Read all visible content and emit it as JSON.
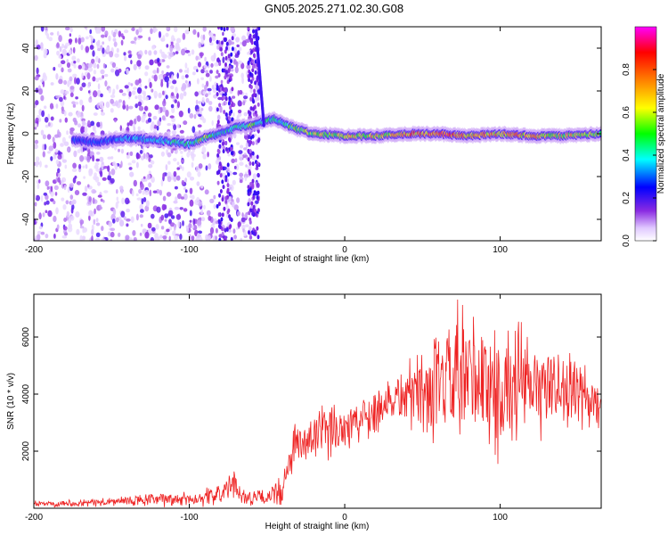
{
  "figure": {
    "title": "GN05.2025.271.02.30.G08"
  },
  "chart_data": [
    {
      "type": "heatmap",
      "xlabel": "Height of straight line (km)",
      "ylabel": "Frequency (Hz)",
      "xlim": [
        -200,
        165
      ],
      "ylim": [
        -50,
        50
      ],
      "xticks": [
        -200,
        -100,
        0,
        100
      ],
      "yticks": [
        -40,
        -20,
        0,
        20,
        40
      ],
      "colorbar": {
        "label": "Normalized spectral amplitude",
        "range": [
          0,
          1
        ],
        "ticks": [
          "0.0",
          "0.2",
          "0.4",
          "0.6",
          "0.8"
        ],
        "tick_values": [
          0.0,
          0.2,
          0.4,
          0.6,
          0.8
        ],
        "colors": [
          "#ffffff",
          "#e0c8ff",
          "#8a2be2",
          "#0000ff",
          "#00ffff",
          "#00ff00",
          "#ffff00",
          "#ff8000",
          "#ff0000",
          "#ff00ff"
        ]
      },
      "ridge": {
        "x": [
          -175,
          -160,
          -140,
          -120,
          -100,
          -90,
          -80,
          -70,
          -60,
          -50,
          -45,
          -40,
          -30,
          -20,
          0,
          20,
          40,
          60,
          80,
          100,
          120,
          140,
          165
        ],
        "freq": [
          -3,
          -4,
          -2,
          -3,
          -5,
          -2,
          0,
          3,
          4,
          6,
          7,
          5,
          2,
          0,
          -1,
          -1,
          0,
          0,
          -1,
          0,
          -1,
          -1,
          0
        ],
        "amp": [
          0.25,
          0.3,
          0.35,
          0.4,
          0.45,
          0.55,
          0.4,
          0.45,
          0.5,
          0.45,
          0.4,
          0.45,
          0.55,
          0.6,
          0.65,
          0.65,
          0.75,
          0.85,
          0.7,
          0.75,
          0.7,
          0.65,
          0.6
        ]
      },
      "noise_region_x": [
        -200,
        -55
      ]
    },
    {
      "type": "line",
      "xlabel": "Height of straight line (km)",
      "ylabel": "SNR (10 * v/v)",
      "xlim": [
        -200,
        165
      ],
      "ylim": [
        0,
        7500
      ],
      "xticks": [
        -200,
        -100,
        0,
        100
      ],
      "yticks": [
        2000,
        4000,
        6000
      ],
      "series": [
        {
          "color": "#ee2222",
          "x": [
            -200,
            -180,
            -160,
            -140,
            -120,
            -100,
            -90,
            -80,
            -75,
            -70,
            -65,
            -60,
            -55,
            -50,
            -45,
            -40,
            -35,
            -30,
            -25,
            -20,
            -15,
            -10,
            -5,
            0,
            5,
            10,
            15,
            20,
            25,
            30,
            35,
            40,
            45,
            50,
            55,
            60,
            65,
            70,
            75,
            80,
            85,
            90,
            95,
            100,
            105,
            110,
            115,
            120,
            125,
            130,
            135,
            140,
            145,
            150,
            155,
            160,
            165
          ],
          "y": [
            150,
            180,
            200,
            250,
            300,
            320,
            380,
            500,
            700,
            800,
            400,
            350,
            380,
            300,
            600,
            500,
            1800,
            2300,
            2100,
            2600,
            2500,
            2700,
            2800,
            2900,
            3000,
            3100,
            3300,
            3500,
            3700,
            3800,
            3900,
            4000,
            4100,
            4200,
            4100,
            4000,
            4300,
            4500,
            4200,
            4400,
            4600,
            4300,
            4100,
            4000,
            4200,
            4500,
            4300,
            4100,
            4000,
            4400,
            4200,
            4300,
            4100,
            3900,
            3800,
            3700,
            3600
          ],
          "spread": [
            100,
            120,
            150,
            200,
            250,
            280,
            300,
            400,
            500,
            500,
            300,
            250,
            300,
            250,
            500,
            500,
            800,
            900,
            900,
            1000,
            1000,
            1000,
            900,
            1000,
            900,
            900,
            900,
            900,
            1000,
            1000,
            1000,
            1200,
            1400,
            1600,
            1800,
            2000,
            2200,
            2600,
            2800,
            3000,
            2800,
            2600,
            2400,
            2200,
            2200,
            2200,
            2000,
            1800,
            1600,
            1600,
            1500,
            1400,
            1400,
            1400,
            1200,
            1200,
            1000
          ]
        }
      ]
    }
  ]
}
